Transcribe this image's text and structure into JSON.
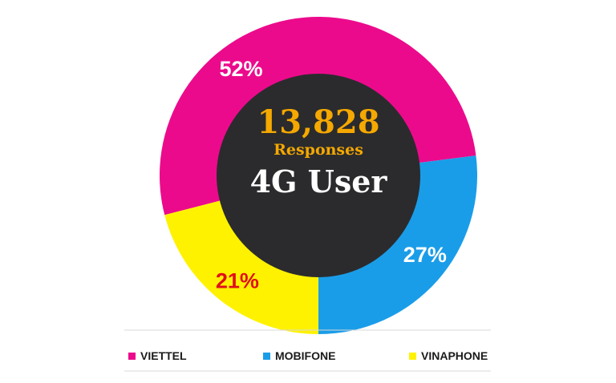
{
  "chart_data": {
    "type": "pie",
    "donut": true,
    "center": {
      "count": "13,828",
      "subtitle": "Responses",
      "title": "4G User"
    },
    "slices": [
      {
        "label": "VIETTEL",
        "value": 52,
        "display": "52%",
        "color": "#ec0a8c",
        "label_color": "#ffffff"
      },
      {
        "label": "MOBIFONE",
        "value": 27,
        "display": "27%",
        "color": "#1a9de8",
        "label_color": "#ffffff"
      },
      {
        "label": "VINAPHONE",
        "value": 21,
        "display": "21%",
        "color": "#fff200",
        "label_color": "#e0101a"
      }
    ],
    "legend_position": "bottom",
    "colors": {
      "center_fill": "#2b2b2d",
      "count_color": "#f5a800",
      "subtitle_color": "#f5a800",
      "title_color": "#ffffff",
      "legend_text": "#1a1a1a",
      "divider": "#d8d8d8"
    }
  }
}
